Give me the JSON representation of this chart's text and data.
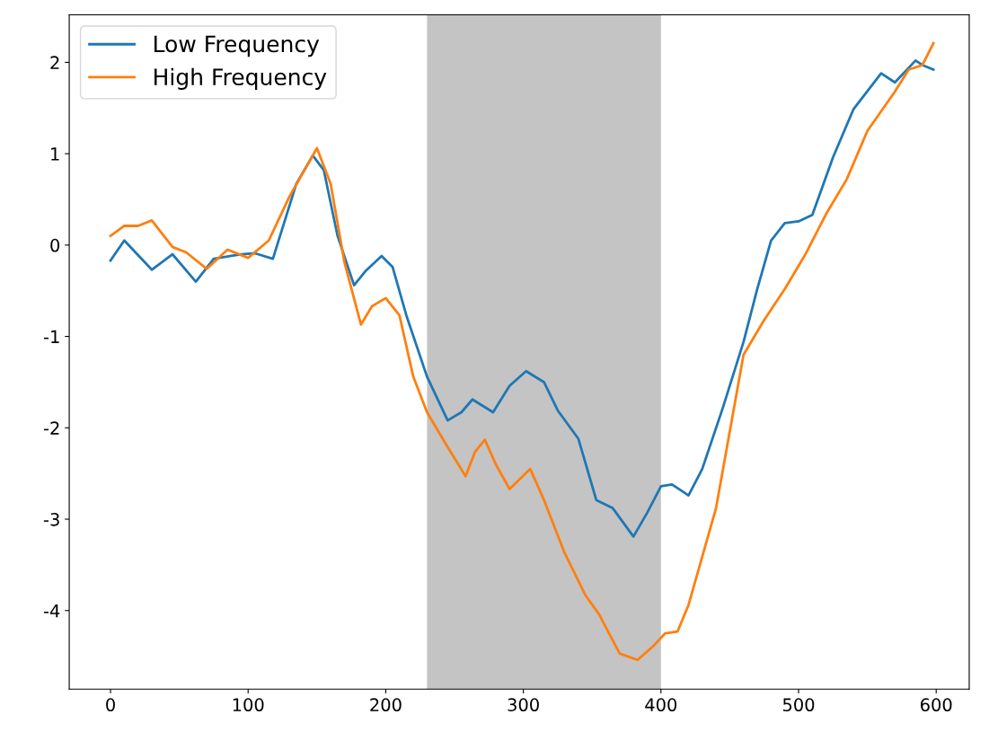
{
  "chart_data": {
    "type": "line",
    "legend": "top left",
    "grid": false,
    "xlim": [
      -30,
      624
    ],
    "ylim": [
      -4.86,
      2.52
    ],
    "xticks": [
      0,
      100,
      200,
      300,
      400,
      500,
      600
    ],
    "yticks": [
      -4,
      -3,
      -2,
      -1,
      0,
      1,
      2
    ],
    "bands": [
      {
        "axis": "x",
        "from": 230,
        "to": 400,
        "color": "#c4c4c4"
      }
    ],
    "series": [
      {
        "name": "Low Frequency",
        "color": "#1f77b4",
        "x": [
          0,
          10,
          30,
          45,
          62,
          75,
          95,
          105,
          118,
          135,
          147,
          155,
          165,
          177,
          185,
          197,
          205,
          215,
          230,
          245,
          255,
          263,
          278,
          290,
          302,
          315,
          325,
          340,
          353,
          365,
          380,
          390,
          400,
          408,
          420,
          430,
          445,
          460,
          470,
          480,
          490,
          500,
          510,
          525,
          540,
          560,
          570,
          585,
          590,
          598
        ],
        "values": [
          -0.17,
          0.05,
          -0.27,
          -0.1,
          -0.4,
          -0.15,
          -0.1,
          -0.09,
          -0.15,
          0.67,
          0.98,
          0.82,
          0.1,
          -0.44,
          -0.29,
          -0.12,
          -0.24,
          -0.77,
          -1.44,
          -1.92,
          -1.83,
          -1.69,
          -1.83,
          -1.54,
          -1.38,
          -1.5,
          -1.81,
          -2.12,
          -2.79,
          -2.88,
          -3.19,
          -2.93,
          -2.64,
          -2.62,
          -2.74,
          -2.45,
          -1.78,
          -1.06,
          -0.48,
          0.05,
          0.24,
          0.26,
          0.33,
          0.96,
          1.49,
          1.88,
          1.78,
          2.02,
          1.97,
          1.92
        ]
      },
      {
        "name": "High Frequency",
        "color": "#ff7f0e",
        "x": [
          0,
          10,
          20,
          30,
          45,
          55,
          70,
          85,
          100,
          115,
          130,
          150,
          160,
          170,
          182,
          190,
          200,
          210,
          220,
          230,
          245,
          258,
          265,
          272,
          280,
          290,
          305,
          315,
          330,
          345,
          355,
          370,
          383,
          395,
          403,
          412,
          420,
          440,
          460,
          475,
          490,
          505,
          520,
          535,
          550,
          570,
          580,
          590,
          598
        ],
        "values": [
          0.1,
          0.21,
          0.21,
          0.27,
          -0.02,
          -0.08,
          -0.26,
          -0.05,
          -0.14,
          0.05,
          0.53,
          1.06,
          0.67,
          -0.19,
          -0.87,
          -0.67,
          -0.58,
          -0.77,
          -1.44,
          -1.83,
          -2.21,
          -2.53,
          -2.26,
          -2.13,
          -2.4,
          -2.67,
          -2.45,
          -2.79,
          -3.37,
          -3.83,
          -4.04,
          -4.47,
          -4.54,
          -4.38,
          -4.25,
          -4.23,
          -3.94,
          -2.88,
          -1.2,
          -0.82,
          -0.48,
          -0.1,
          0.34,
          0.72,
          1.25,
          1.68,
          1.92,
          1.97,
          2.21
        ]
      }
    ]
  }
}
